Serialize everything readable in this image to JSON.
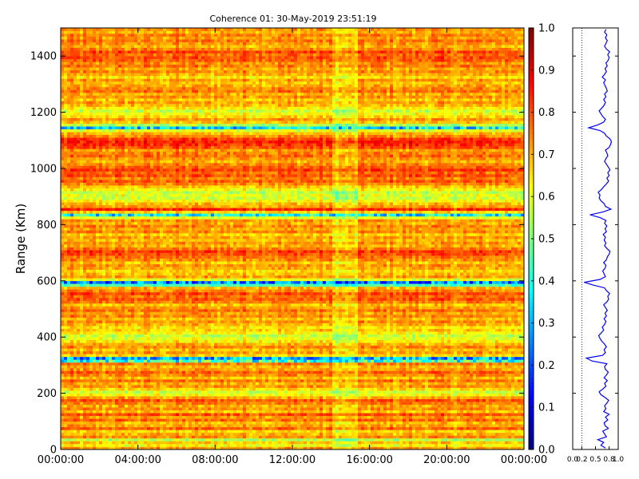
{
  "chart_data": [
    {
      "type": "heatmap",
      "title": "Coherence 01: 30-May-2019 23:51:19",
      "xlabel": "",
      "ylabel": "Range (Km)",
      "x_ticks": [
        "00:00:00",
        "04:00:00",
        "08:00:00",
        "12:00:00",
        "16:00:00",
        "20:00:00",
        "00:00:00"
      ],
      "x_range_hours": [
        0,
        24
      ],
      "y_ticks": [
        0,
        200,
        400,
        600,
        800,
        1000,
        1200,
        1400
      ],
      "ylim": [
        0,
        1500
      ],
      "colormap": "jet",
      "clim": [
        0.0,
        1.0
      ],
      "colorbar_ticks": [
        "0.0",
        "0.1",
        "0.2",
        "0.3",
        "0.4",
        "0.5",
        "0.6",
        "0.7",
        "0.8",
        "0.9",
        "1.0"
      ],
      "range_profile": [
        [
          0,
          0.72
        ],
        [
          10,
          0.62
        ],
        [
          20,
          0.68
        ],
        [
          30,
          0.55
        ],
        [
          40,
          0.74
        ],
        [
          50,
          0.7
        ],
        [
          60,
          0.66
        ],
        [
          70,
          0.78
        ],
        [
          80,
          0.71
        ],
        [
          90,
          0.69
        ],
        [
          100,
          0.77
        ],
        [
          110,
          0.72
        ],
        [
          120,
          0.8
        ],
        [
          130,
          0.68
        ],
        [
          140,
          0.73
        ],
        [
          150,
          0.7
        ],
        [
          160,
          0.75
        ],
        [
          170,
          0.79
        ],
        [
          180,
          0.71
        ],
        [
          190,
          0.62
        ],
        [
          200,
          0.58
        ],
        [
          210,
          0.66
        ],
        [
          220,
          0.73
        ],
        [
          230,
          0.7
        ],
        [
          240,
          0.76
        ],
        [
          250,
          0.69
        ],
        [
          260,
          0.74
        ],
        [
          270,
          0.78
        ],
        [
          280,
          0.72
        ],
        [
          290,
          0.7
        ],
        [
          300,
          0.75
        ],
        [
          310,
          0.42
        ],
        [
          320,
          0.3
        ],
        [
          330,
          0.66
        ],
        [
          340,
          0.72
        ],
        [
          350,
          0.69
        ],
        [
          360,
          0.74
        ],
        [
          370,
          0.7
        ],
        [
          380,
          0.64
        ],
        [
          390,
          0.6
        ],
        [
          400,
          0.57
        ],
        [
          410,
          0.63
        ],
        [
          420,
          0.68
        ],
        [
          430,
          0.65
        ],
        [
          440,
          0.7
        ],
        [
          450,
          0.73
        ],
        [
          460,
          0.69
        ],
        [
          470,
          0.74
        ],
        [
          480,
          0.71
        ],
        [
          490,
          0.76
        ],
        [
          500,
          0.72
        ],
        [
          510,
          0.68
        ],
        [
          520,
          0.75
        ],
        [
          530,
          0.79
        ],
        [
          540,
          0.77
        ],
        [
          550,
          0.81
        ],
        [
          560,
          0.74
        ],
        [
          570,
          0.7
        ],
        [
          580,
          0.45
        ],
        [
          590,
          0.25
        ],
        [
          600,
          0.6
        ],
        [
          610,
          0.72
        ],
        [
          620,
          0.69
        ],
        [
          630,
          0.66
        ],
        [
          640,
          0.71
        ],
        [
          650,
          0.73
        ],
        [
          660,
          0.68
        ],
        [
          670,
          0.74
        ],
        [
          680,
          0.76
        ],
        [
          690,
          0.8
        ],
        [
          700,
          0.82
        ],
        [
          710,
          0.75
        ],
        [
          720,
          0.7
        ],
        [
          730,
          0.73
        ],
        [
          740,
          0.69
        ],
        [
          750,
          0.72
        ],
        [
          760,
          0.67
        ],
        [
          770,
          0.74
        ],
        [
          780,
          0.71
        ],
        [
          790,
          0.75
        ],
        [
          800,
          0.7
        ],
        [
          810,
          0.73
        ],
        [
          820,
          0.6
        ],
        [
          830,
          0.38
        ],
        [
          840,
          0.66
        ],
        [
          850,
          0.84
        ],
        [
          860,
          0.72
        ],
        [
          870,
          0.69
        ],
        [
          880,
          0.62
        ],
        [
          890,
          0.58
        ],
        [
          900,
          0.6
        ],
        [
          910,
          0.56
        ],
        [
          920,
          0.63
        ],
        [
          930,
          0.68
        ],
        [
          940,
          0.74
        ],
        [
          950,
          0.79
        ],
        [
          960,
          0.75
        ],
        [
          970,
          0.8
        ],
        [
          980,
          0.77
        ],
        [
          990,
          0.82
        ],
        [
          1000,
          0.78
        ],
        [
          1010,
          0.74
        ],
        [
          1020,
          0.7
        ],
        [
          1030,
          0.73
        ],
        [
          1040,
          0.77
        ],
        [
          1050,
          0.75
        ],
        [
          1060,
          0.72
        ],
        [
          1070,
          0.8
        ],
        [
          1080,
          0.83
        ],
        [
          1090,
          0.85
        ],
        [
          1100,
          0.82
        ],
        [
          1110,
          0.74
        ],
        [
          1120,
          0.7
        ],
        [
          1130,
          0.6
        ],
        [
          1140,
          0.35
        ],
        [
          1150,
          0.55
        ],
        [
          1160,
          0.68
        ],
        [
          1170,
          0.72
        ],
        [
          1180,
          0.66
        ],
        [
          1190,
          0.62
        ],
        [
          1200,
          0.58
        ],
        [
          1210,
          0.64
        ],
        [
          1220,
          0.69
        ],
        [
          1230,
          0.72
        ],
        [
          1240,
          0.68
        ],
        [
          1250,
          0.73
        ],
        [
          1260,
          0.7
        ],
        [
          1270,
          0.76
        ],
        [
          1280,
          0.74
        ],
        [
          1290,
          0.71
        ],
        [
          1300,
          0.68
        ],
        [
          1310,
          0.72
        ],
        [
          1320,
          0.65
        ],
        [
          1330,
          0.7
        ],
        [
          1340,
          0.74
        ],
        [
          1350,
          0.71
        ],
        [
          1360,
          0.76
        ],
        [
          1370,
          0.73
        ],
        [
          1380,
          0.78
        ],
        [
          1390,
          0.8
        ],
        [
          1400,
          0.77
        ],
        [
          1410,
          0.81
        ],
        [
          1420,
          0.74
        ],
        [
          1430,
          0.7
        ],
        [
          1440,
          0.73
        ],
        [
          1450,
          0.76
        ],
        [
          1460,
          0.72
        ],
        [
          1470,
          0.75
        ],
        [
          1480,
          0.7
        ],
        [
          1490,
          0.73
        ]
      ],
      "profile_xlim": [
        0.0,
        1.0
      ],
      "profile_ticks": [
        "0.0",
        "0.2",
        "0.5",
        "0.8",
        "1.0"
      ],
      "profile_reference": 0.2,
      "colors": {
        "profile_line": "#0000ff"
      }
    }
  ]
}
